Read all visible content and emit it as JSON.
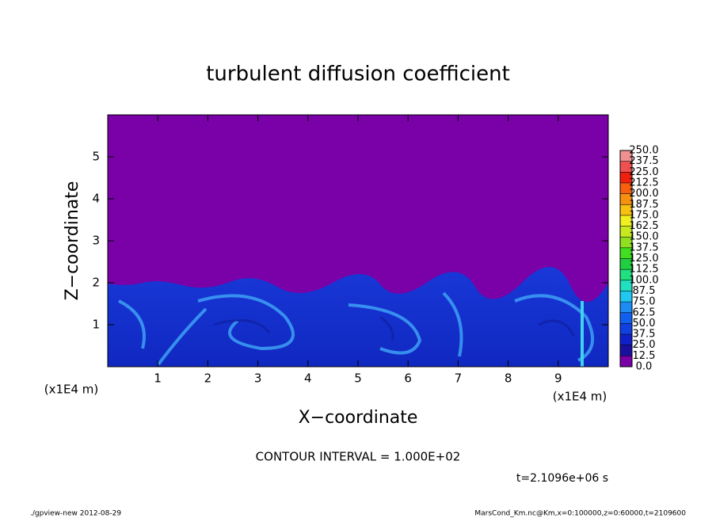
{
  "chart_data": {
    "type": "contour",
    "title": "turbulent diffusion coefficient",
    "x_label": "X−coordinate",
    "y_label": "Z−coordinate",
    "x_unit": "(x1E4 m)",
    "y_unit": "(x1E4 m)",
    "xlim": [
      0,
      10
    ],
    "xticks": [
      1,
      2,
      3,
      4,
      5,
      6,
      7,
      8,
      9
    ],
    "ylim": [
      0,
      6
    ],
    "yticks": [
      1,
      2,
      3,
      4,
      5
    ],
    "colorbar": {
      "levels": [
        {
          "value": 0,
          "label": "0.0"
        },
        {
          "value": 12.5,
          "label": "12.5"
        },
        {
          "value": 25,
          "label": "25.0"
        },
        {
          "value": 37.5,
          "label": "37.5"
        },
        {
          "value": 50,
          "label": "50.0"
        },
        {
          "value": 62.5,
          "label": "62.5"
        },
        {
          "value": 75,
          "label": "75.0"
        },
        {
          "value": 87.5,
          "label": "87.5"
        },
        {
          "value": 100,
          "label": "100.0"
        },
        {
          "value": 112.5,
          "label": "112.5"
        },
        {
          "value": 125,
          "label": "125.0"
        },
        {
          "value": 137.5,
          "label": "137.5"
        },
        {
          "value": 150,
          "label": "150.0"
        },
        {
          "value": 162.5,
          "label": "162.5"
        },
        {
          "value": 175,
          "label": "175.0"
        },
        {
          "value": 187.5,
          "label": "187.5"
        },
        {
          "value": 200,
          "label": "200.0"
        },
        {
          "value": 212.5,
          "label": "212.5"
        },
        {
          "value": 225,
          "label": "225.0"
        },
        {
          "value": 237.5,
          "label": "237.5"
        },
        {
          "value": 250,
          "label": "250.0"
        }
      ],
      "colors": [
        "#7a00a8",
        "#1a10a0",
        "#1020c8",
        "#1040e0",
        "#1060f0",
        "#1c8cf4",
        "#20c8f0",
        "#20e0c0",
        "#20e080",
        "#20d040",
        "#40e020",
        "#90e020",
        "#c8e820",
        "#f0f020",
        "#f8c010",
        "#f89010",
        "#f86010",
        "#f02010",
        "#f05050",
        "#f09090"
      ]
    },
    "annotation": "CONTOUR INTERVAL = 1.000E+02",
    "time_label": "t=2.1096e+06 s",
    "footer_left": "./gpview-new  2012-08-29",
    "footer_right": "MarsCond_Km.nc@Km,x=0:100000,z=0:60000,t=2109600"
  }
}
